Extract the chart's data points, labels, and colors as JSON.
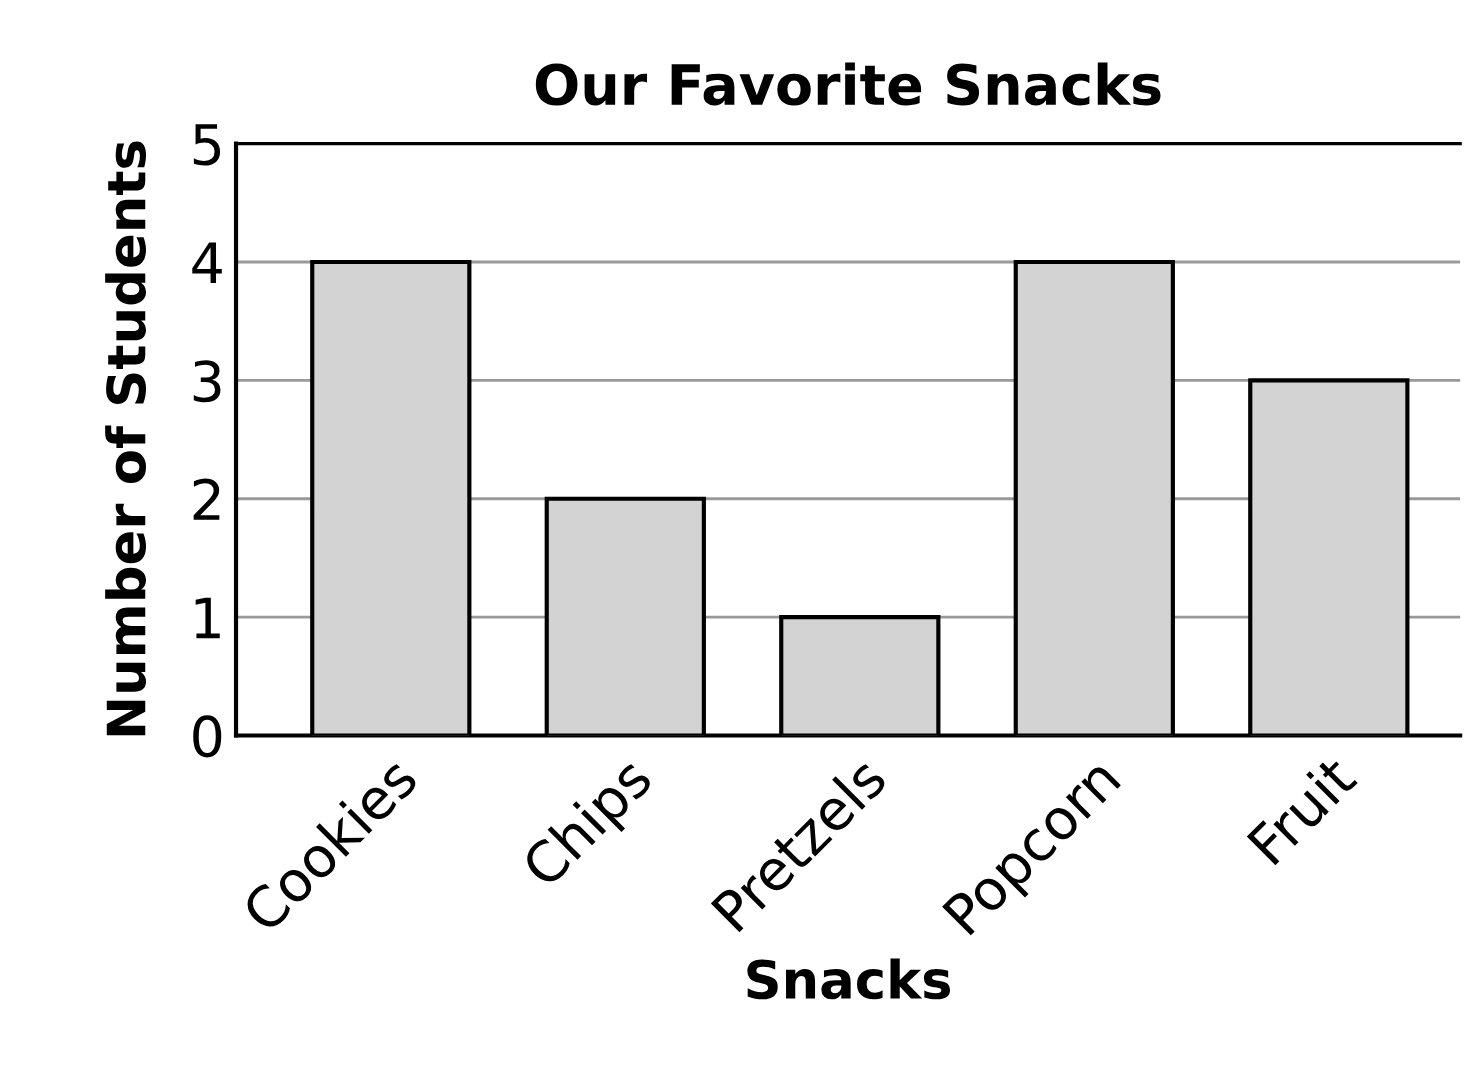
{
  "chart_data": {
    "type": "bar",
    "title": "Our Favorite Snacks",
    "xlabel": "Snacks",
    "ylabel": "Number of Students",
    "categories": [
      "Cookies",
      "Chips",
      "Pretzels",
      "Popcorn",
      "Fruit"
    ],
    "values": [
      4,
      2,
      1,
      4,
      3
    ],
    "color": "#d3d3d3",
    "ylim": [
      0,
      5
    ],
    "yticks": [
      0,
      1,
      2,
      3,
      4,
      5
    ],
    "grid": "y"
  }
}
